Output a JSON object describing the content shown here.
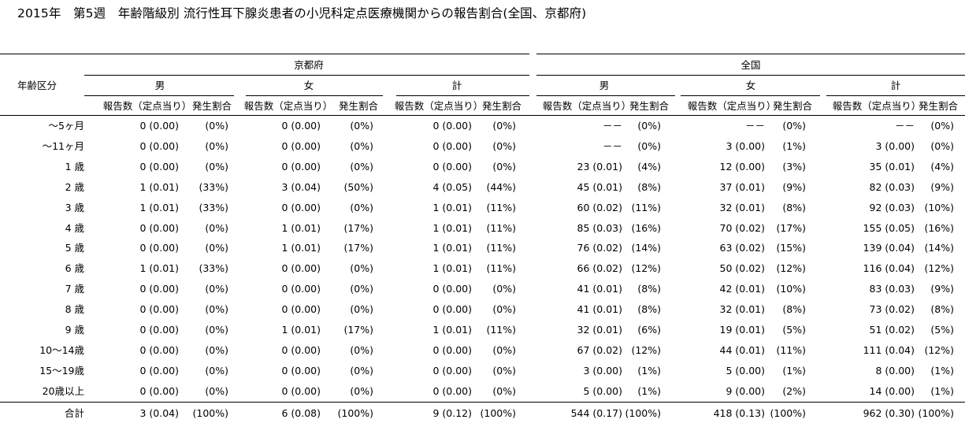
{
  "title": "2015年　第5週　年齢階級別 流行性耳下腺炎患者の小児科定点医療機関からの報告割合(全国、京都府)",
  "headers": {
    "age_col": "年齢区分",
    "region_kyoto": "京都府",
    "region_national": "全国",
    "sex": [
      "男",
      "女",
      "計"
    ],
    "sub_count": "報告数（定点当り）",
    "sub_ratio": "発生割合"
  },
  "rows": [
    {
      "age": "～5ヶ月",
      "values": [
        [
          "0 (0.00)",
          "(0%)"
        ],
        [
          "0 (0.00)",
          "(0%)"
        ],
        [
          "0 (0.00)",
          "(0%)"
        ],
        [
          "－－",
          "(0%)"
        ],
        [
          "－－",
          "(0%)"
        ],
        [
          "－－",
          "(0%)"
        ]
      ]
    },
    {
      "age": "～11ヶ月",
      "values": [
        [
          "0 (0.00)",
          "(0%)"
        ],
        [
          "0 (0.00)",
          "(0%)"
        ],
        [
          "0 (0.00)",
          "(0%)"
        ],
        [
          "－－",
          "(0%)"
        ],
        [
          "3 (0.00)",
          "(1%)"
        ],
        [
          "3 (0.00)",
          "(0%)"
        ]
      ]
    },
    {
      "age": "1 歳",
      "values": [
        [
          "0 (0.00)",
          "(0%)"
        ],
        [
          "0 (0.00)",
          "(0%)"
        ],
        [
          "0 (0.00)",
          "(0%)"
        ],
        [
          "23 (0.01)",
          "(4%)"
        ],
        [
          "12 (0.00)",
          "(3%)"
        ],
        [
          "35 (0.01)",
          "(4%)"
        ]
      ]
    },
    {
      "age": "2 歳",
      "values": [
        [
          "1 (0.01)",
          "(33%)"
        ],
        [
          "3 (0.04)",
          "(50%)"
        ],
        [
          "4 (0.05)",
          "(44%)"
        ],
        [
          "45 (0.01)",
          "(8%)"
        ],
        [
          "37 (0.01)",
          "(9%)"
        ],
        [
          "82 (0.03)",
          "(9%)"
        ]
      ]
    },
    {
      "age": "3 歳",
      "values": [
        [
          "1 (0.01)",
          "(33%)"
        ],
        [
          "0 (0.00)",
          "(0%)"
        ],
        [
          "1 (0.01)",
          "(11%)"
        ],
        [
          "60 (0.02)",
          "(11%)"
        ],
        [
          "32 (0.01)",
          "(8%)"
        ],
        [
          "92 (0.03)",
          "(10%)"
        ]
      ]
    },
    {
      "age": "4 歳",
      "values": [
        [
          "0 (0.00)",
          "(0%)"
        ],
        [
          "1 (0.01)",
          "(17%)"
        ],
        [
          "1 (0.01)",
          "(11%)"
        ],
        [
          "85 (0.03)",
          "(16%)"
        ],
        [
          "70 (0.02)",
          "(17%)"
        ],
        [
          "155 (0.05)",
          "(16%)"
        ]
      ]
    },
    {
      "age": "5 歳",
      "values": [
        [
          "0 (0.00)",
          "(0%)"
        ],
        [
          "1 (0.01)",
          "(17%)"
        ],
        [
          "1 (0.01)",
          "(11%)"
        ],
        [
          "76 (0.02)",
          "(14%)"
        ],
        [
          "63 (0.02)",
          "(15%)"
        ],
        [
          "139 (0.04)",
          "(14%)"
        ]
      ]
    },
    {
      "age": "6 歳",
      "values": [
        [
          "1 (0.01)",
          "(33%)"
        ],
        [
          "0 (0.00)",
          "(0%)"
        ],
        [
          "1 (0.01)",
          "(11%)"
        ],
        [
          "66 (0.02)",
          "(12%)"
        ],
        [
          "50 (0.02)",
          "(12%)"
        ],
        [
          "116 (0.04)",
          "(12%)"
        ]
      ]
    },
    {
      "age": "7 歳",
      "values": [
        [
          "0 (0.00)",
          "(0%)"
        ],
        [
          "0 (0.00)",
          "(0%)"
        ],
        [
          "0 (0.00)",
          "(0%)"
        ],
        [
          "41 (0.01)",
          "(8%)"
        ],
        [
          "42 (0.01)",
          "(10%)"
        ],
        [
          "83 (0.03)",
          "(9%)"
        ]
      ]
    },
    {
      "age": "8 歳",
      "values": [
        [
          "0 (0.00)",
          "(0%)"
        ],
        [
          "0 (0.00)",
          "(0%)"
        ],
        [
          "0 (0.00)",
          "(0%)"
        ],
        [
          "41 (0.01)",
          "(8%)"
        ],
        [
          "32 (0.01)",
          "(8%)"
        ],
        [
          "73 (0.02)",
          "(8%)"
        ]
      ]
    },
    {
      "age": "9 歳",
      "values": [
        [
          "0 (0.00)",
          "(0%)"
        ],
        [
          "1 (0.01)",
          "(17%)"
        ],
        [
          "1 (0.01)",
          "(11%)"
        ],
        [
          "32 (0.01)",
          "(6%)"
        ],
        [
          "19 (0.01)",
          "(5%)"
        ],
        [
          "51 (0.02)",
          "(5%)"
        ]
      ]
    },
    {
      "age": "10～14歳",
      "values": [
        [
          "0 (0.00)",
          "(0%)"
        ],
        [
          "0 (0.00)",
          "(0%)"
        ],
        [
          "0 (0.00)",
          "(0%)"
        ],
        [
          "67 (0.02)",
          "(12%)"
        ],
        [
          "44 (0.01)",
          "(11%)"
        ],
        [
          "111 (0.04)",
          "(12%)"
        ]
      ]
    },
    {
      "age": "15～19歳",
      "values": [
        [
          "0 (0.00)",
          "(0%)"
        ],
        [
          "0 (0.00)",
          "(0%)"
        ],
        [
          "0 (0.00)",
          "(0%)"
        ],
        [
          "3 (0.00)",
          "(1%)"
        ],
        [
          "5 (0.00)",
          "(1%)"
        ],
        [
          "8 (0.00)",
          "(1%)"
        ]
      ]
    },
    {
      "age": "20歳以上",
      "values": [
        [
          "0 (0.00)",
          "(0%)"
        ],
        [
          "0 (0.00)",
          "(0%)"
        ],
        [
          "0 (0.00)",
          "(0%)"
        ],
        [
          "5 (0.00)",
          "(1%)"
        ],
        [
          "9 (0.00)",
          "(2%)"
        ],
        [
          "14 (0.00)",
          "(1%)"
        ]
      ]
    }
  ],
  "total": {
    "age": "合計",
    "values": [
      [
        "3 (0.04)",
        "(100%)"
      ],
      [
        "6 (0.08)",
        "(100%)"
      ],
      [
        "9 (0.12)",
        "(100%)"
      ],
      [
        "544 (0.17)",
        "(100%)"
      ],
      [
        "418 (0.13)",
        "(100%)"
      ],
      [
        "962 (0.30)",
        "(100%)"
      ]
    ]
  }
}
